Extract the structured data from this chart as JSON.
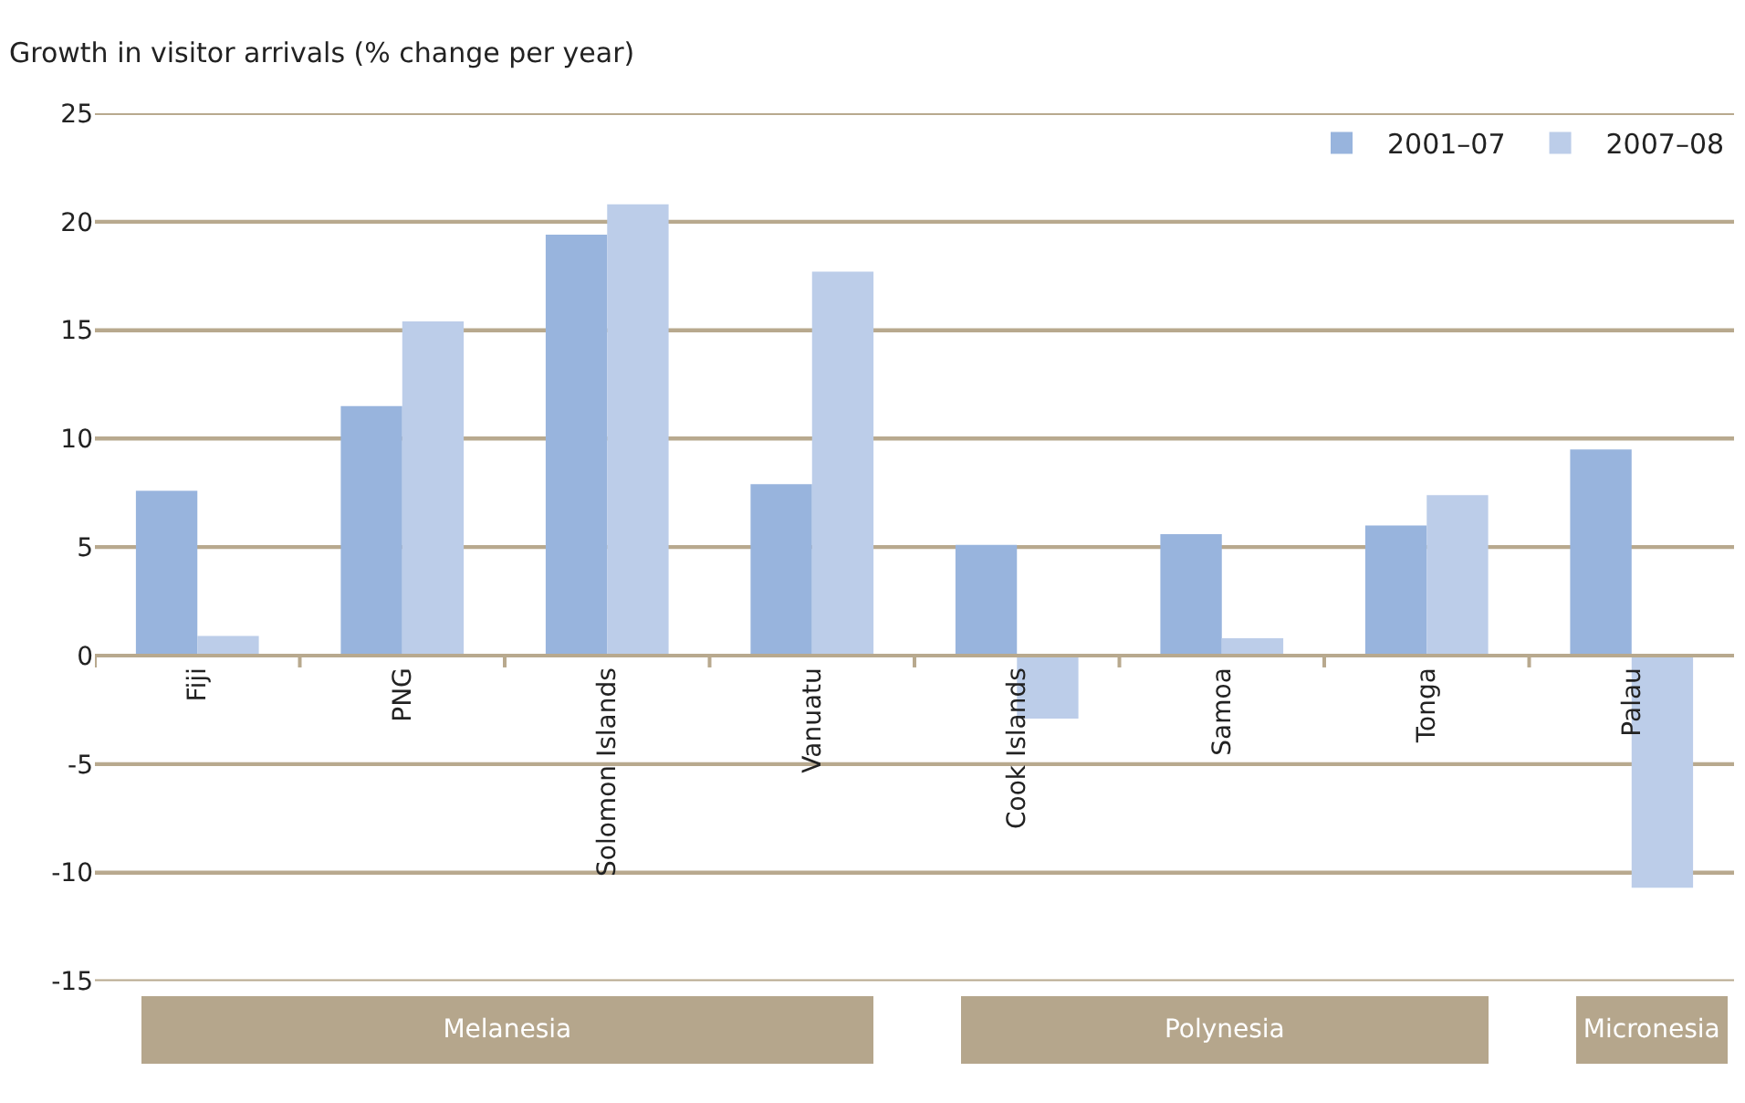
{
  "chart_data": {
    "type": "bar",
    "ylabel": "Growth in visitor arrivals (% change per year)",
    "categories": [
      "Fiji",
      "PNG",
      "Solomon Islands",
      "Vanuatu",
      "Cook Islands",
      "Samoa",
      "Tonga",
      "Palau"
    ],
    "series": [
      {
        "name": "2001–07",
        "color": "#98b4dd",
        "values": [
          7.6,
          11.5,
          19.4,
          7.9,
          5.1,
          5.6,
          6.0,
          9.5
        ]
      },
      {
        "name": "2007–08",
        "color": "#bccde9",
        "values": [
          0.9,
          15.4,
          20.8,
          17.7,
          -2.9,
          0.8,
          7.4,
          -10.7
        ]
      }
    ],
    "ylim": [
      -15,
      25
    ],
    "yticks": [
      -15,
      -10,
      -5,
      0,
      5,
      10,
      15,
      20,
      25
    ],
    "grid": "y",
    "legend": "top right",
    "annotations": [
      "Melanesia",
      "Polynesia",
      "Micronesia"
    ]
  }
}
